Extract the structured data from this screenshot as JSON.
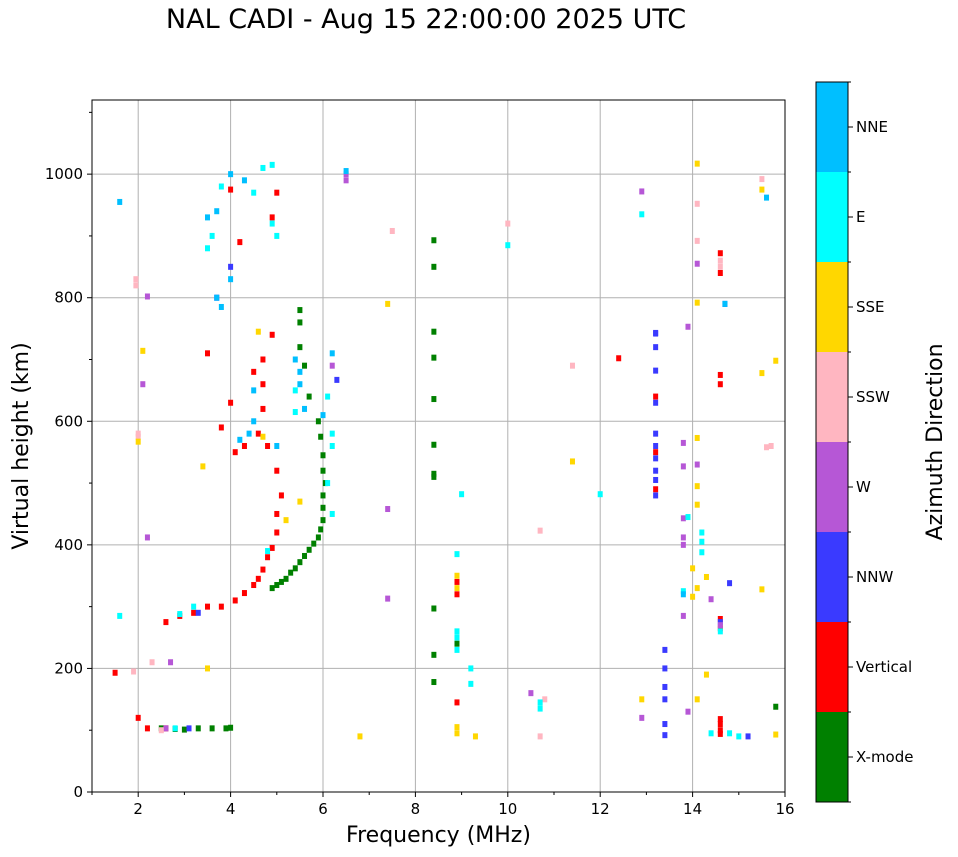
{
  "chart_data": {
    "type": "scatter",
    "title": "NAL CADI - Aug 15 22:00:00 2025 UTC",
    "xlabel": "Frequency (MHz)",
    "ylabel": "Virtual height (km)",
    "xlim": [
      1,
      16
    ],
    "ylim": [
      0,
      1120
    ],
    "xticks": [
      2,
      4,
      6,
      8,
      10,
      12,
      14,
      16
    ],
    "yticks": [
      0,
      200,
      400,
      600,
      800,
      1000
    ],
    "grid": true,
    "colorbar": {
      "label": "Azimuth Direction",
      "categories": [
        {
          "name": "X-mode",
          "color": "#008000"
        },
        {
          "name": "Vertical",
          "color": "#ff0000"
        },
        {
          "name": "NNW",
          "color": "#3a3aff"
        },
        {
          "name": "W",
          "color": "#b657d6"
        },
        {
          "name": "SSW",
          "color": "#ffb6c1"
        },
        {
          "name": "SSE",
          "color": "#ffd700"
        },
        {
          "name": "E",
          "color": "#00ffff"
        },
        {
          "name": "NNE",
          "color": "#00bfff"
        }
      ]
    },
    "series": [
      {
        "name": "X-mode",
        "points": [
          [
            3.0,
            101
          ],
          [
            3.3,
            103
          ],
          [
            3.6,
            103
          ],
          [
            3.9,
            103
          ],
          [
            4.0,
            104
          ],
          [
            4.9,
            330
          ],
          [
            5.0,
            335
          ],
          [
            5.1,
            340
          ],
          [
            5.2,
            345
          ],
          [
            5.3,
            355
          ],
          [
            5.4,
            362
          ],
          [
            5.5,
            372
          ],
          [
            5.6,
            382
          ],
          [
            5.7,
            392
          ],
          [
            5.8,
            402
          ],
          [
            5.9,
            412
          ],
          [
            5.95,
            425
          ],
          [
            6.0,
            440
          ],
          [
            6.0,
            460
          ],
          [
            6.0,
            480
          ],
          [
            6.05,
            500
          ],
          [
            6.0,
            520
          ],
          [
            6.0,
            545
          ],
          [
            5.95,
            575
          ],
          [
            5.9,
            600
          ],
          [
            5.7,
            640
          ],
          [
            5.6,
            690
          ],
          [
            5.5,
            720
          ],
          [
            5.5,
            760
          ],
          [
            5.5,
            780
          ],
          [
            8.4,
            893
          ],
          [
            8.4,
            850
          ],
          [
            8.4,
            745
          ],
          [
            8.4,
            703
          ],
          [
            8.4,
            636
          ],
          [
            8.4,
            562
          ],
          [
            8.4,
            515
          ],
          [
            8.4,
            510
          ],
          [
            8.4,
            297
          ],
          [
            8.4,
            222
          ],
          [
            8.4,
            178
          ],
          [
            8.9,
            240
          ],
          [
            15.8,
            138
          ],
          [
            2.5,
            103
          ],
          [
            2.8,
            102
          ]
        ]
      },
      {
        "name": "Vertical",
        "points": [
          [
            1.5,
            193
          ],
          [
            2.0,
            120
          ],
          [
            2.2,
            103
          ],
          [
            2.6,
            103
          ],
          [
            2.6,
            275
          ],
          [
            2.9,
            285
          ],
          [
            3.2,
            290
          ],
          [
            3.5,
            300
          ],
          [
            3.8,
            300
          ],
          [
            4.1,
            310
          ],
          [
            4.3,
            322
          ],
          [
            4.5,
            335
          ],
          [
            4.6,
            345
          ],
          [
            4.7,
            360
          ],
          [
            4.8,
            380
          ],
          [
            4.9,
            395
          ],
          [
            5.0,
            420
          ],
          [
            5.0,
            450
          ],
          [
            5.1,
            480
          ],
          [
            5.0,
            520
          ],
          [
            4.8,
            560
          ],
          [
            4.6,
            580
          ],
          [
            4.3,
            560
          ],
          [
            4.1,
            550
          ],
          [
            4.0,
            630
          ],
          [
            4.7,
            620
          ],
          [
            4.7,
            660
          ],
          [
            4.7,
            700
          ],
          [
            4.9,
            740
          ],
          [
            4.5,
            680
          ],
          [
            3.8,
            590
          ],
          [
            8.9,
            320
          ],
          [
            8.9,
            340
          ],
          [
            8.9,
            145
          ],
          [
            12.4,
            702
          ],
          [
            13.2,
            640
          ],
          [
            13.2,
            550
          ],
          [
            13.2,
            490
          ],
          [
            14.6,
            872
          ],
          [
            14.6,
            840
          ],
          [
            14.6,
            675
          ],
          [
            14.6,
            660
          ],
          [
            14.6,
            265
          ],
          [
            14.6,
            280
          ],
          [
            14.6,
            118
          ],
          [
            14.6,
            110
          ],
          [
            14.6,
            100
          ],
          [
            14.6,
            94
          ],
          [
            4.0,
            975
          ],
          [
            4.2,
            890
          ],
          [
            3.5,
            710
          ],
          [
            5.0,
            970
          ],
          [
            4.9,
            930
          ]
        ]
      },
      {
        "name": "NNW",
        "points": [
          [
            13.2,
            742
          ],
          [
            13.2,
            743
          ],
          [
            13.2,
            720
          ],
          [
            13.2,
            682
          ],
          [
            13.2,
            630
          ],
          [
            13.2,
            580
          ],
          [
            13.2,
            560
          ],
          [
            13.2,
            540
          ],
          [
            13.2,
            520
          ],
          [
            13.2,
            505
          ],
          [
            13.2,
            480
          ],
          [
            13.4,
            230
          ],
          [
            13.4,
            200
          ],
          [
            13.4,
            170
          ],
          [
            13.4,
            150
          ],
          [
            13.4,
            110
          ],
          [
            13.4,
            92
          ],
          [
            14.6,
            275
          ],
          [
            14.8,
            338
          ],
          [
            14.7,
            790
          ],
          [
            15.2,
            90
          ],
          [
            3.7,
            800
          ],
          [
            4.0,
            850
          ],
          [
            3.3,
            290
          ],
          [
            3.1,
            103
          ],
          [
            6.3,
            667
          ]
        ]
      },
      {
        "name": "W",
        "points": [
          [
            2.1,
            660
          ],
          [
            2.2,
            802
          ],
          [
            2.2,
            412
          ],
          [
            2.6,
            103
          ],
          [
            7.4,
            313
          ],
          [
            7.4,
            458
          ],
          [
            10.5,
            160
          ],
          [
            12.9,
            972
          ],
          [
            12.9,
            120
          ],
          [
            13.8,
            565
          ],
          [
            13.8,
            527
          ],
          [
            13.8,
            412
          ],
          [
            13.8,
            400
          ],
          [
            13.8,
            285
          ],
          [
            13.8,
            443
          ],
          [
            13.9,
            753
          ],
          [
            13.9,
            130
          ],
          [
            14.1,
            855
          ],
          [
            14.1,
            530
          ],
          [
            14.6,
            270
          ],
          [
            14.4,
            312
          ],
          [
            6.5,
            990
          ],
          [
            6.5,
            1000
          ],
          [
            6.2,
            690
          ],
          [
            2.7,
            210
          ]
        ]
      },
      {
        "name": "SSW",
        "points": [
          [
            1.95,
            830
          ],
          [
            1.95,
            820
          ],
          [
            2.0,
            580
          ],
          [
            2.0,
            575
          ],
          [
            1.9,
            195
          ],
          [
            2.3,
            210
          ],
          [
            7.5,
            908
          ],
          [
            10.0,
            920
          ],
          [
            10.7,
            423
          ],
          [
            10.7,
            90
          ],
          [
            10.8,
            150
          ],
          [
            11.4,
            690
          ],
          [
            14.1,
            952
          ],
          [
            14.1,
            892
          ],
          [
            14.6,
            860
          ],
          [
            14.6,
            850
          ],
          [
            15.5,
            992
          ],
          [
            15.6,
            558
          ],
          [
            15.7,
            560
          ],
          [
            2.5,
            100
          ]
        ]
      },
      {
        "name": "SSE",
        "points": [
          [
            2.0,
            567
          ],
          [
            2.1,
            714
          ],
          [
            3.4,
            527
          ],
          [
            4.6,
            745
          ],
          [
            4.7,
            575
          ],
          [
            7.4,
            790
          ],
          [
            8.9,
            350
          ],
          [
            8.9,
            330
          ],
          [
            8.9,
            105
          ],
          [
            8.9,
            95
          ],
          [
            9.3,
            90
          ],
          [
            11.4,
            535
          ],
          [
            12.9,
            150
          ],
          [
            14.1,
            1017
          ],
          [
            14.1,
            792
          ],
          [
            14.1,
            573
          ],
          [
            14.1,
            495
          ],
          [
            14.1,
            465
          ],
          [
            14.0,
            362
          ],
          [
            14.1,
            330
          ],
          [
            14.0,
            316
          ],
          [
            14.3,
            190
          ],
          [
            14.1,
            150
          ],
          [
            14.3,
            348
          ],
          [
            15.5,
            975
          ],
          [
            15.5,
            678
          ],
          [
            15.8,
            698
          ],
          [
            15.5,
            328
          ],
          [
            15.8,
            93
          ],
          [
            6.8,
            90
          ],
          [
            5.5,
            470
          ],
          [
            5.2,
            440
          ],
          [
            3.5,
            200
          ]
        ]
      },
      {
        "name": "E",
        "points": [
          [
            4.9,
            1015
          ],
          [
            4.7,
            1010
          ],
          [
            3.8,
            980
          ],
          [
            4.5,
            970
          ],
          [
            3.6,
            900
          ],
          [
            3.5,
            880
          ],
          [
            4.9,
            920
          ],
          [
            5.0,
            900
          ],
          [
            5.4,
            650
          ],
          [
            5.4,
            615
          ],
          [
            6.2,
            580
          ],
          [
            6.2,
            560
          ],
          [
            6.1,
            500
          ],
          [
            6.2,
            450
          ],
          [
            6.1,
            640
          ],
          [
            8.9,
            385
          ],
          [
            8.9,
            260
          ],
          [
            8.9,
            250
          ],
          [
            8.9,
            230
          ],
          [
            9.2,
            200
          ],
          [
            9.2,
            175
          ],
          [
            9.0,
            482
          ],
          [
            10.0,
            885
          ],
          [
            10.7,
            145
          ],
          [
            10.7,
            135
          ],
          [
            12.0,
            482
          ],
          [
            12.9,
            935
          ],
          [
            13.8,
            325
          ],
          [
            13.9,
            445
          ],
          [
            14.2,
            420
          ],
          [
            14.2,
            405
          ],
          [
            14.2,
            388
          ],
          [
            14.6,
            260
          ],
          [
            14.4,
            95
          ],
          [
            14.8,
            95
          ],
          [
            15.0,
            90
          ],
          [
            2.9,
            288
          ],
          [
            3.2,
            300
          ],
          [
            2.8,
            103
          ],
          [
            1.6,
            285
          ],
          [
            4.8,
            390
          ]
        ]
      },
      {
        "name": "NNE",
        "points": [
          [
            1.6,
            955
          ],
          [
            4.0,
            1000
          ],
          [
            4.3,
            990
          ],
          [
            3.7,
            940
          ],
          [
            3.5,
            930
          ],
          [
            4.0,
            830
          ],
          [
            3.8,
            785
          ],
          [
            3.7,
            800
          ],
          [
            4.2,
            570
          ],
          [
            4.5,
            600
          ],
          [
            4.4,
            580
          ],
          [
            5.0,
            560
          ],
          [
            5.5,
            680
          ],
          [
            5.5,
            660
          ],
          [
            5.6,
            620
          ],
          [
            6.0,
            610
          ],
          [
            6.2,
            710
          ],
          [
            6.5,
            1005
          ],
          [
            15.6,
            962
          ],
          [
            14.7,
            790
          ],
          [
            13.8,
            320
          ],
          [
            5.4,
            700
          ],
          [
            4.5,
            650
          ]
        ]
      }
    ]
  }
}
